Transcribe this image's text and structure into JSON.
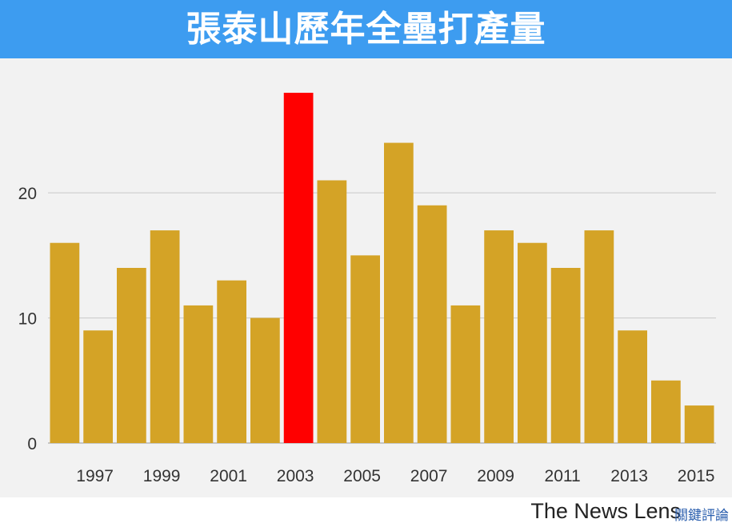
{
  "header": {
    "title": "張泰山歷年全壘打產量"
  },
  "brand": {
    "name": "The News Lens",
    "cjk": "關鍵評論"
  },
  "colors": {
    "header_bg": "#3d9cf0",
    "bar": "#d4a326",
    "highlight": "#ff0000",
    "plot_bg": "#f2f2f2"
  },
  "chart_data": {
    "type": "bar",
    "title": "張泰山歷年全壘打產量",
    "xlabel": "",
    "ylabel": "",
    "categories": [
      "1996",
      "1997",
      "1998",
      "1999",
      "2000",
      "2001",
      "2002",
      "2003",
      "2004",
      "2005",
      "2006",
      "2007",
      "2008",
      "2009",
      "2010",
      "2011",
      "2012",
      "2013",
      "2014",
      "2015"
    ],
    "x_tick_labels": [
      "1997",
      "1999",
      "2001",
      "2003",
      "2005",
      "2007",
      "2009",
      "2011",
      "2013",
      "2015"
    ],
    "values": [
      16,
      9,
      14,
      17,
      11,
      13,
      10,
      28,
      21,
      15,
      24,
      19,
      11,
      17,
      16,
      14,
      17,
      9,
      5,
      3
    ],
    "highlight_category": "2003",
    "ylim": [
      0,
      28
    ],
    "y_ticks": [
      0,
      10,
      20
    ],
    "grid": true
  }
}
